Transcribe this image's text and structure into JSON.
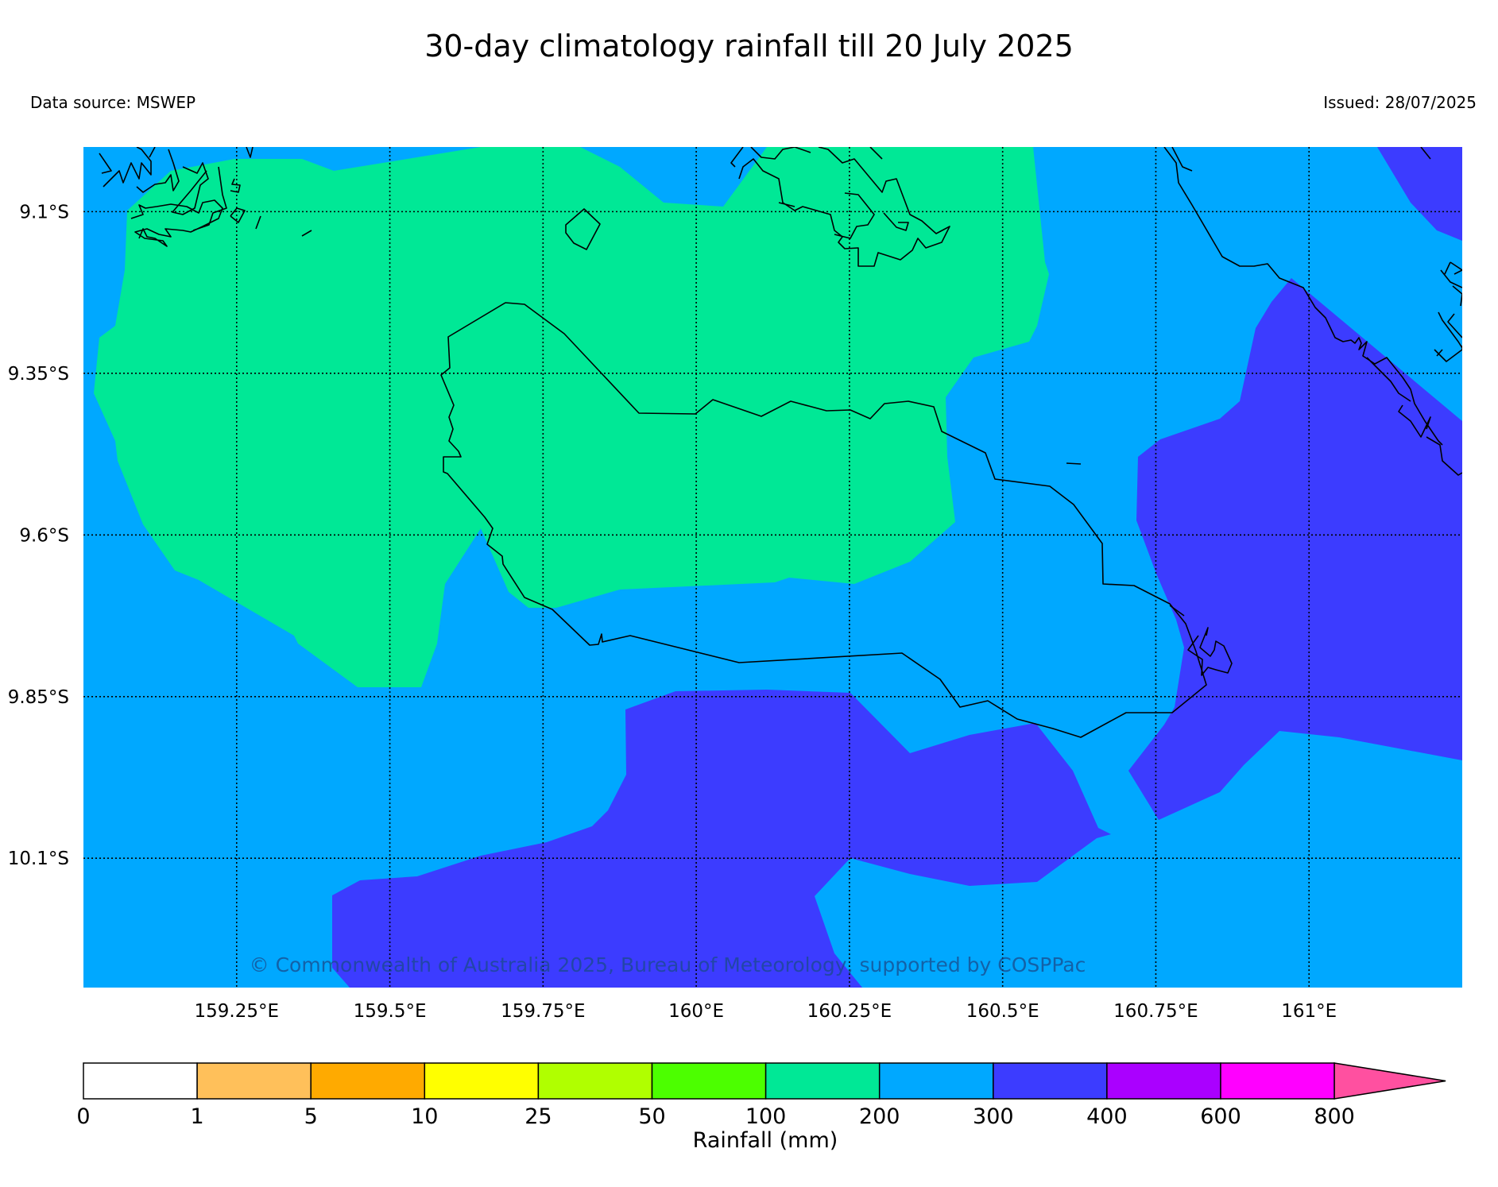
{
  "header": {
    "title": "30-day climatology rainfall till 20 July 2025",
    "data_source": "Data source: MSWEP",
    "issued": "Issued: 28/07/2025"
  },
  "map": {
    "lon_range": [
      159.0,
      161.25
    ],
    "lat_range": [
      -10.3,
      -9.0
    ],
    "lon_ticks": [
      {
        "value": 159.25,
        "label": "159.25°E"
      },
      {
        "value": 159.5,
        "label": "159.5°E"
      },
      {
        "value": 159.75,
        "label": "159.75°E"
      },
      {
        "value": 160.0,
        "label": "160°E"
      },
      {
        "value": 160.25,
        "label": "160.25°E"
      },
      {
        "value": 160.5,
        "label": "160.5°E"
      },
      {
        "value": 160.75,
        "label": "160.75°E"
      },
      {
        "value": 161.0,
        "label": "161°E"
      }
    ],
    "lat_ticks": [
      {
        "value": -9.1,
        "label": "9.1°S"
      },
      {
        "value": -9.35,
        "label": "9.35°S"
      },
      {
        "value": -9.6,
        "label": "9.6°S"
      },
      {
        "value": -9.85,
        "label": "9.85°S"
      },
      {
        "value": -10.1,
        "label": "10.1°S"
      }
    ],
    "grid": "dotted",
    "copyright": "© Commonwealth of Australia 2025, Bureau of Meteorology, supported by COSPPac"
  },
  "colorbar": {
    "title": "Rainfall (mm)",
    "boundaries": [
      "0",
      "1",
      "5",
      "10",
      "25",
      "50",
      "100",
      "200",
      "300",
      "400",
      "600",
      "800"
    ],
    "colors": [
      "#ffffff",
      "#ffc05a",
      "#ffaa00",
      "#ffff00",
      "#b0ff00",
      "#4cff00",
      "#00e896",
      "#00a8ff",
      "#3c3cff",
      "#aa00ff",
      "#ff00ff",
      "#ff50a0"
    ],
    "extend": "max"
  }
}
